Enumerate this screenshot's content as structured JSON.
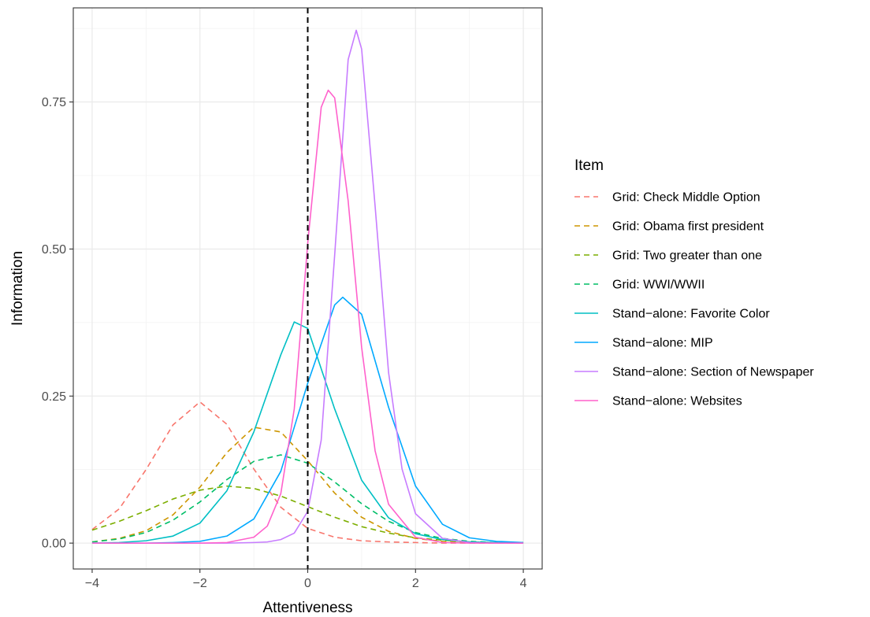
{
  "chart_data": {
    "type": "line",
    "xlabel": "Attentiveness",
    "ylabel": "Information",
    "xlim": [
      -4.35,
      4.35
    ],
    "ylim": [
      -0.044,
      0.91
    ],
    "x_ticks": [
      -4,
      -2,
      0,
      2,
      4
    ],
    "x_tick_labels": [
      "−4",
      "−2",
      "0",
      "2",
      "4"
    ],
    "y_ticks": [
      0,
      0.25,
      0.5,
      0.75
    ],
    "y_tick_labels": [
      "0.00",
      "0.25",
      "0.50",
      "0.75"
    ],
    "grid": true,
    "reference_line": {
      "x": 0,
      "style": "dashed",
      "color": "#000000"
    },
    "legend": {
      "title": "Item",
      "position": "right"
    },
    "series": [
      {
        "name": "Grid: Check Middle Option",
        "color": "#F8766D",
        "style": "dashed",
        "x": [
          -4,
          -3.5,
          -3,
          -2.5,
          -2,
          -1.5,
          -1,
          -0.5,
          0,
          0.5,
          1,
          1.5,
          2,
          2.5,
          3,
          3.5,
          4
        ],
        "y": [
          0.023,
          0.058,
          0.125,
          0.201,
          0.24,
          0.202,
          0.126,
          0.061,
          0.025,
          0.01,
          0.004,
          0.002,
          0.001,
          0,
          0,
          0,
          0
        ]
      },
      {
        "name": "Grid: Obama first president",
        "color": "#CD9600",
        "style": "dashed",
        "x": [
          -4,
          -3.5,
          -3,
          -2.5,
          -2,
          -1.5,
          -1,
          -0.5,
          0,
          0.5,
          1,
          1.5,
          2,
          2.5,
          3,
          3.5,
          4
        ],
        "y": [
          0.002,
          0.008,
          0.021,
          0.048,
          0.095,
          0.154,
          0.197,
          0.189,
          0.14,
          0.085,
          0.044,
          0.02,
          0.008,
          0.003,
          0.001,
          0,
          0
        ]
      },
      {
        "name": "Grid: Two greater than one",
        "color": "#7CAE00",
        "style": "dashed",
        "x": [
          -4,
          -3.5,
          -3,
          -2.5,
          -2,
          -1.5,
          -1,
          -0.5,
          0,
          0.5,
          1,
          1.5,
          2,
          2.5,
          3,
          3.5,
          4
        ],
        "y": [
          0.022,
          0.037,
          0.055,
          0.075,
          0.09,
          0.097,
          0.093,
          0.08,
          0.062,
          0.044,
          0.028,
          0.017,
          0.009,
          0.005,
          0.002,
          0.001,
          0.001
        ]
      },
      {
        "name": "Grid: WWI/WWII",
        "color": "#00BE67",
        "style": "dashed",
        "x": [
          -4,
          -3.5,
          -3,
          -2.5,
          -2,
          -1.5,
          -1,
          -0.5,
          0,
          0.5,
          1,
          1.5,
          2,
          2.5,
          3,
          3.5,
          4
        ],
        "y": [
          0.002,
          0.007,
          0.018,
          0.039,
          0.07,
          0.108,
          0.139,
          0.15,
          0.136,
          0.104,
          0.067,
          0.037,
          0.018,
          0.008,
          0.003,
          0.001,
          0
        ]
      },
      {
        "name": "Stand−alone: Favorite Color",
        "color": "#00BFC4",
        "style": "solid",
        "x": [
          -4,
          -3.5,
          -3,
          -2.5,
          -2,
          -1.5,
          -1,
          -0.5,
          -0.25,
          0,
          0.5,
          1,
          1.5,
          2,
          2.5,
          3,
          3.5,
          4
        ],
        "y": [
          0,
          0.001,
          0.004,
          0.012,
          0.034,
          0.089,
          0.189,
          0.32,
          0.376,
          0.365,
          0.228,
          0.107,
          0.043,
          0.016,
          0.006,
          0.002,
          0.001,
          0
        ]
      },
      {
        "name": "Stand−alone: MIP",
        "color": "#00A9FF",
        "style": "solid",
        "x": [
          -4,
          -3.5,
          -3,
          -2.5,
          -2,
          -1.5,
          -1,
          -0.5,
          0,
          0.5,
          0.65,
          1,
          1.5,
          2,
          2.5,
          3,
          3.5,
          4
        ],
        "y": [
          0,
          0,
          0,
          0.001,
          0.003,
          0.012,
          0.041,
          0.122,
          0.272,
          0.405,
          0.418,
          0.389,
          0.231,
          0.097,
          0.032,
          0.009,
          0.003,
          0.001
        ]
      },
      {
        "name": "Stand−alone: Section of Newspaper",
        "color": "#C77CFF",
        "style": "solid",
        "x": [
          -4,
          -3,
          -2,
          -1.5,
          -1,
          -0.75,
          -0.5,
          -0.25,
          0,
          0.25,
          0.5,
          0.75,
          0.9,
          1,
          1.25,
          1.5,
          1.75,
          2,
          2.5,
          3,
          3.5,
          4
        ],
        "y": [
          0,
          0,
          0,
          0,
          0.001,
          0.002,
          0.006,
          0.017,
          0.054,
          0.175,
          0.49,
          0.822,
          0.872,
          0.84,
          0.573,
          0.29,
          0.126,
          0.05,
          0.008,
          0.001,
          0,
          0
        ]
      },
      {
        "name": "Stand−alone: Websites",
        "color": "#FF61CC",
        "style": "solid",
        "x": [
          -4,
          -3,
          -2,
          -1.5,
          -1,
          -0.75,
          -0.5,
          -0.25,
          0,
          0.25,
          0.38,
          0.5,
          0.75,
          1,
          1.25,
          1.5,
          2,
          2.5,
          3,
          3.5,
          4
        ],
        "y": [
          0,
          0,
          0,
          0.001,
          0.01,
          0.029,
          0.084,
          0.228,
          0.51,
          0.741,
          0.77,
          0.757,
          0.582,
          0.333,
          0.157,
          0.066,
          0.01,
          0.001,
          0,
          0,
          0
        ]
      }
    ]
  }
}
